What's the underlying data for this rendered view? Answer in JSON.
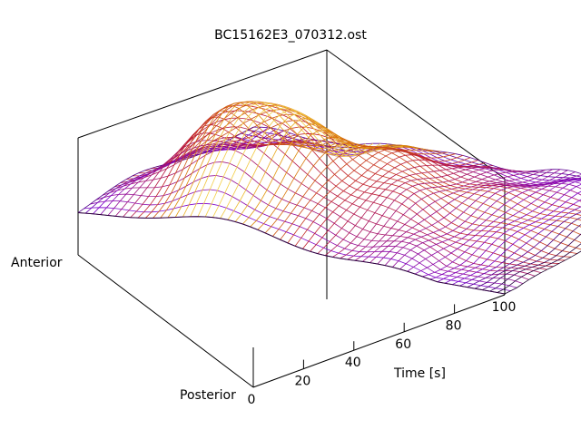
{
  "chart_data": {
    "type": "surface",
    "title": "BC15162E3_070312.ost",
    "xlabel": "Time [s]",
    "ylabel_left": "Anterior",
    "ylabel_right": "Posterior",
    "xlim": [
      0,
      100
    ],
    "x_ticks": [
      "0",
      "20",
      "40",
      "60",
      "80",
      "100"
    ],
    "colormap": {
      "low": "#000000",
      "mid_low": "#7a00d2",
      "mid": "#c01e2c",
      "mid_high": "#de8b00",
      "high": "#fff36b"
    },
    "colors": {
      "frame": "#000000",
      "mesh_default": "#7b00ff"
    },
    "surface_peak_time": 26,
    "surface_peak_position": 0.35,
    "surface_peak_level": 1.0,
    "grid": false
  }
}
